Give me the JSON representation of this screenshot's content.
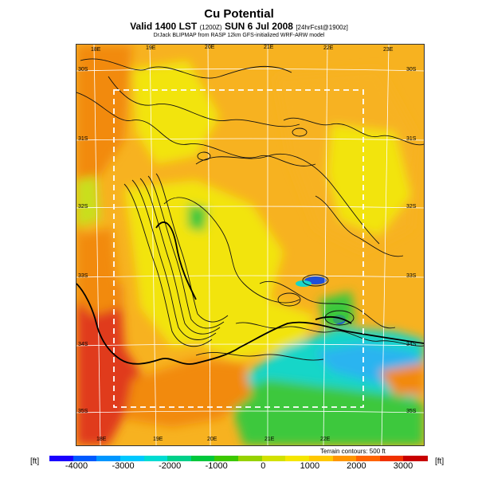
{
  "title": "Cu Potential",
  "subtitle_main": "Valid 1400 LST",
  "subtitle_time": "(1200Z)",
  "subtitle_date": "SUN 6 Jul 2008",
  "subtitle_fcst": "[24hrFcst@1900z]",
  "credit": "DrJack BLIPMAP from RASP 12km GFS-initialized WRF-ARW model",
  "terrain_note": "Terrain contours: 500 ft",
  "units": {
    "left": "[ft]",
    "right": "[ft]"
  },
  "lon_labels_top": [
    "18E",
    "19E",
    "20E",
    "21E",
    "22E",
    "23E"
  ],
  "lon_labels_bottom": [
    "18E",
    "19E",
    "20E",
    "21E",
    "22E"
  ],
  "lat_labels_left": [
    "30S",
    "31S",
    "32S",
    "33S",
    "34S",
    "35S"
  ],
  "lat_labels_right": [
    "30S",
    "31S",
    "32S",
    "33S",
    "34S",
    "35S"
  ],
  "colorbar": {
    "ticks": [
      "-4000",
      "-3000",
      "-2000",
      "-1000",
      "0",
      "1000",
      "2000",
      "3000"
    ],
    "colors": [
      "#1a00ff",
      "#005aff",
      "#0096ff",
      "#00c8ff",
      "#00dcd2",
      "#00d08a",
      "#00c83c",
      "#3cc800",
      "#96d200",
      "#d2e100",
      "#f5e600",
      "#ffc800",
      "#ff9600",
      "#ff6400",
      "#f03200",
      "#c80000"
    ]
  },
  "field_colors": {
    "deep_red": "#e03a1a",
    "orange": "#f28a10",
    "light_orange": "#f7b220",
    "yellow": "#f2e40f",
    "yellow_green": "#c9df1a",
    "green": "#3cc83c",
    "cyan": "#18d6c8",
    "light_blue": "#2ab4f0",
    "blue": "#1f50d8"
  }
}
